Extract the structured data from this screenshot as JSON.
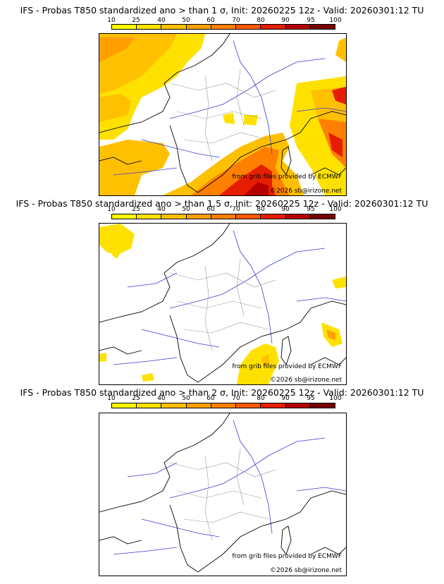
{
  "colorbar": {
    "ticks": [
      "10",
      "25",
      "40",
      "50",
      "60",
      "70",
      "80",
      "90",
      "95",
      "100"
    ],
    "colors": [
      "#ffff00",
      "#ffe100",
      "#ffc000",
      "#ff9f00",
      "#ff8000",
      "#ff5a00",
      "#e61e00",
      "#b40000",
      "#780000"
    ]
  },
  "panels": [
    {
      "title": "IFS - Probas T850  standardized ano > than 1 σ, Init: 20260225 12z - Valid: 20260301:12 TU",
      "source": "from grib files provided by ECMWF",
      "copyright": "©2026 sb@irizone.net"
    },
    {
      "title": "IFS - Probas T850  standardized ano > than 1.5 σ, Init: 20260225 12z - Valid: 20260301:12 TU",
      "source": "from grib files provided by ECMWF",
      "copyright": "©2026 sb@irizone.net"
    },
    {
      "title": "IFS - Probas T850  standardized ano > than 2 σ, Init: 20260225 12z - Valid: 20260301:12 TU",
      "source": "from grib files provided by ECMWF",
      "copyright": "©2026 sb@irizone.net"
    }
  ]
}
